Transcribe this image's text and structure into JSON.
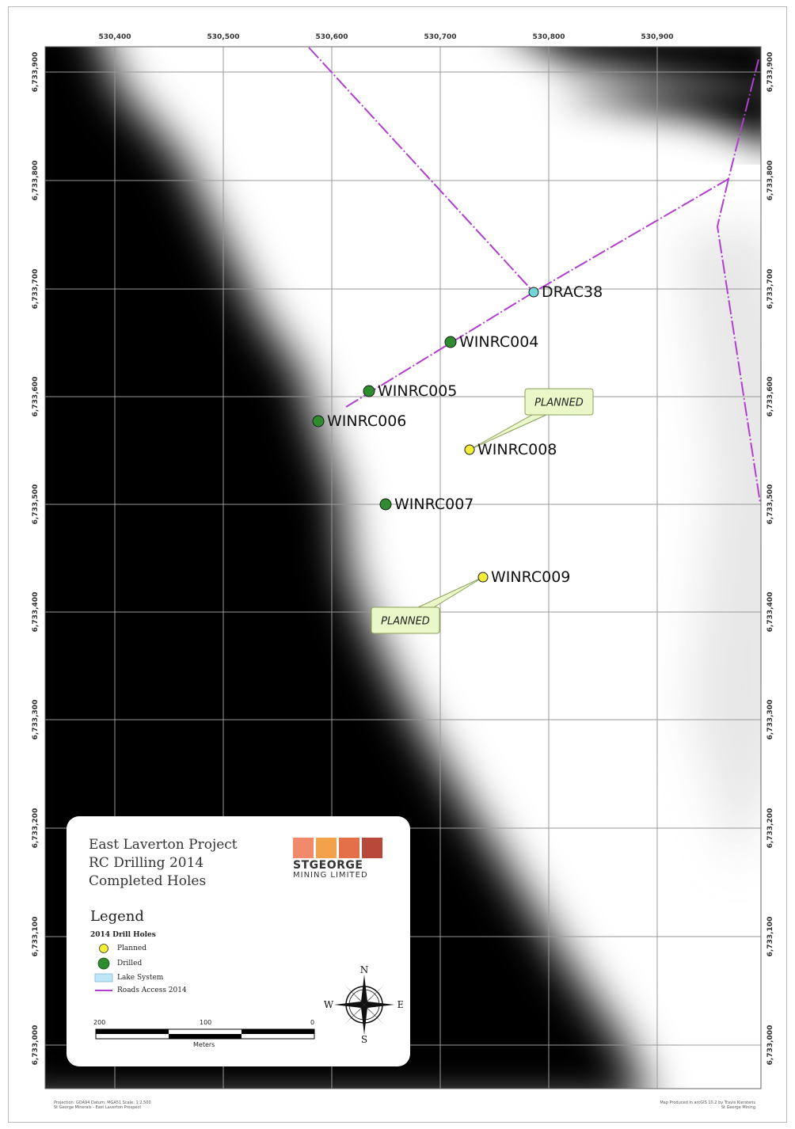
{
  "map": {
    "x_ticks": [
      "530,400",
      "530,500",
      "530,600",
      "530,700",
      "530,800",
      "530,900"
    ],
    "y_ticks": [
      "6,733,900",
      "6,733,800",
      "6,733,700",
      "6,733,600",
      "6,733,500",
      "6,733,400",
      "6,733,300",
      "6,733,200",
      "6,733,100",
      "6,733,000"
    ],
    "holes": [
      {
        "id": "DRAC38",
        "status": "other",
        "color": "#6fd6d6"
      },
      {
        "id": "WINRC004",
        "status": "drilled",
        "color": "#2e8b2e"
      },
      {
        "id": "WINRC005",
        "status": "drilled",
        "color": "#2e8b2e"
      },
      {
        "id": "WINRC006",
        "status": "drilled",
        "color": "#2e8b2e"
      },
      {
        "id": "WINRC008",
        "status": "planned",
        "color": "#f2ee3a"
      },
      {
        "id": "WINRC007",
        "status": "drilled",
        "color": "#2e8b2e"
      },
      {
        "id": "WINRC009",
        "status": "planned",
        "color": "#f2ee3a"
      }
    ],
    "callouts": [
      "PLANNED",
      "PLANNED"
    ],
    "road_color": "#b03fcf"
  },
  "legend": {
    "title_lines": [
      "East Laverton Project",
      "RC Drilling 2014",
      "Completed Holes"
    ],
    "heading": "Legend",
    "subheading": "2014 Drill Holes",
    "items": [
      {
        "label": "Planned",
        "color": "#f2ee3a"
      },
      {
        "label": "Drilled",
        "color": "#2e8b2e"
      },
      {
        "label": "Lake System",
        "color": "#bfe6f7"
      },
      {
        "label": "Roads Access 2014",
        "color": "#b03fcf"
      }
    ],
    "logo_colors": [
      "#f08a6a",
      "#f3a24a",
      "#e37048",
      "#b8483a"
    ],
    "logo_name": "STGEORGE",
    "logo_sub": "MINING LIMITED",
    "scale_labels": [
      "200",
      "100",
      "0"
    ],
    "scale_unit": "Meters",
    "compass": {
      "n": "N",
      "s": "S",
      "e": "E",
      "w": "W"
    }
  },
  "footer": {
    "left_line1": "Projection: GDA94  Datum: MGA51  Scale: 1:2,500",
    "left_line2": "St George Minerals - East Laverton Prospect",
    "right_line1": "Map Produced in arcGIS 10.2 by Travis Kierstens",
    "right_line2": "St George Mining"
  }
}
